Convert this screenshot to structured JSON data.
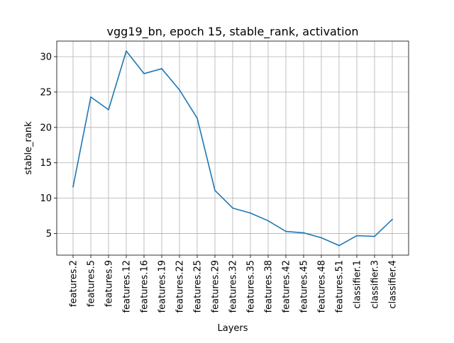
{
  "chart_data": {
    "type": "line",
    "title": "vgg19_bn, epoch 15, stable_rank, activation",
    "xlabel": "Layers",
    "ylabel": "stable_rank",
    "categories": [
      "features.2",
      "features.5",
      "features.9",
      "features.12",
      "features.16",
      "features.19",
      "features.22",
      "features.25",
      "features.29",
      "features.32",
      "features.35",
      "features.38",
      "features.42",
      "features.45",
      "features.48",
      "features.51",
      "classifier.1",
      "classifier.3",
      "classifier.4"
    ],
    "series": [
      {
        "values": [
          11.6,
          24.3,
          22.5,
          30.8,
          27.6,
          28.3,
          25.3,
          21.3,
          11.1,
          8.6,
          7.9,
          6.8,
          5.3,
          5.1,
          4.4,
          3.3,
          4.7,
          4.6,
          7.0
        ],
        "color": "#1f77b4"
      }
    ],
    "yticks": [
      5,
      10,
      15,
      20,
      25,
      30
    ],
    "ylim": [
      1.95,
      32.2
    ],
    "grid": true
  }
}
